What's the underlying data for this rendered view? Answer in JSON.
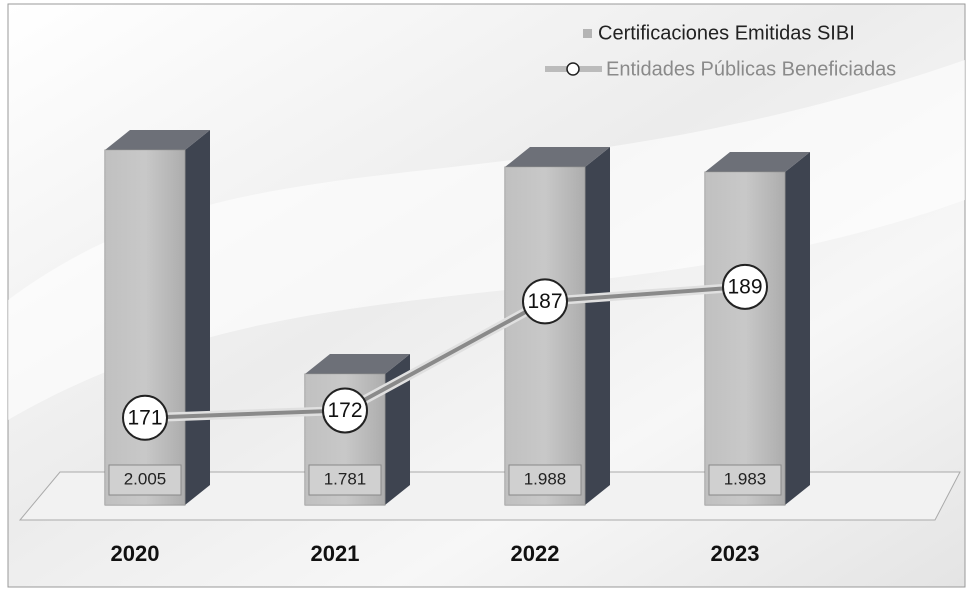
{
  "chart_data": {
    "type": "bar",
    "categories": [
      "2020",
      "2021",
      "2022",
      "2023"
    ],
    "series": [
      {
        "name": "Certificaciones Emitidas SIBI",
        "color": "#b4b4b4",
        "values": [
          2005,
          1781,
          1988,
          1983
        ],
        "value_labels": [
          "2.005",
          "1.781",
          "1.988",
          "1.983"
        ]
      },
      {
        "name": "Entidades Públicas Beneficiadas",
        "color": "#8a8a8a",
        "values": [
          171,
          172,
          187,
          189
        ],
        "axis": "y2"
      }
    ],
    "ylim": [
      1650,
      2050
    ],
    "y2lim": [
      159,
      214
    ],
    "legend": "top-right"
  }
}
